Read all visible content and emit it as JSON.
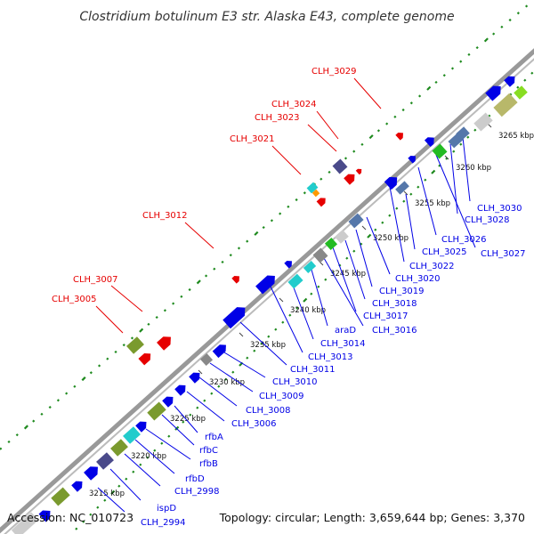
{
  "title": "Clostridium botulinum E3 str. Alaska E43, complete genome",
  "accession": "Accession: NC_010723",
  "summary": "Topology: circular; Length: 3,659,644 bp; Genes: 3,370",
  "colors": {
    "forward": "#e60000",
    "reverse": "#0000e6",
    "backbone": "#999999",
    "gc_skew": "#1e8a1e",
    "olive": "#7a9a2e",
    "cyan": "#22cccc",
    "slate": "#5577aa",
    "purple": "#4a4a8a",
    "orange": "#ff9900",
    "gray": "#888888",
    "light_gray": "#cccccc",
    "khaki": "#b8b86a",
    "lime": "#88dd22",
    "green": "#22bb22"
  },
  "kbp_ticks": [
    "3215 kbp",
    "3220 kbp",
    "3225 kbp",
    "3230 kbp",
    "3235 kbp",
    "3240 kbp",
    "3245 kbp",
    "3250 kbp",
    "3255 kbp",
    "3260 kbp",
    "3265 kbp"
  ],
  "forward_labels": [
    "CLH_3005",
    "CLH_3007",
    "CLH_3012",
    "CLH_3021",
    "CLH_3023",
    "CLH_3024",
    "CLH_3029"
  ],
  "reverse_labels": [
    "CLH_2994",
    "ispD",
    "CLH_2998",
    "rfbD",
    "rfbB",
    "rfbC",
    "rfbA",
    "CLH_3006",
    "CLH_3008",
    "CLH_3009",
    "CLH_3010",
    "CLH_3011",
    "CLH_3013",
    "CLH_3014",
    "araD",
    "CLH_3016",
    "CLH_3017",
    "CLH_3018",
    "CLH_3019",
    "CLH_3020",
    "CLH_3022",
    "CLH_3025",
    "CLH_3026",
    "CLH_3027",
    "CLH_3028",
    "CLH_3030"
  ]
}
